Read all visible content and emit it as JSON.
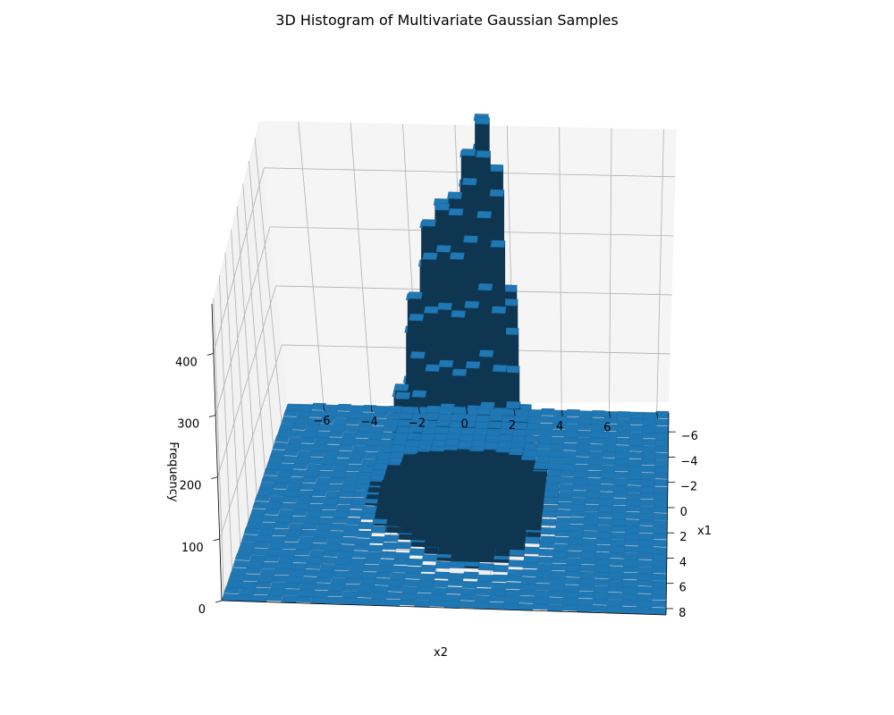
{
  "chart_data": {
    "type": "histogram3d",
    "title": "3D Histogram of Multivariate Gaussian Samples",
    "xlabel": "x1",
    "ylabel": "x2",
    "zlabel": "Frequency",
    "x1_ticks": [
      "−6",
      "−4",
      "−2",
      "0",
      "2",
      "4",
      "6",
      "8"
    ],
    "x2_ticks": [
      "−6",
      "−4",
      "−2",
      "0",
      "2",
      "4",
      "6",
      "8"
    ],
    "z_ticks": [
      "0",
      "100",
      "200",
      "300",
      "400"
    ],
    "x1_range": [
      -7.5,
      8.5
    ],
    "x2_range": [
      -7.5,
      8.5
    ],
    "zlim": [
      0,
      480
    ],
    "bins_per_axis": 30,
    "bar_color": "#1f77b4",
    "grid": true,
    "pane_color": "#f2f2f2",
    "components": [
      {
        "mean_x1": 0.0,
        "mean_x2": -0.7,
        "peak": 445
      },
      {
        "mean_x1": 0.0,
        "mean_x2": 1.5,
        "peak": 470
      },
      {
        "mean_x1": 2.0,
        "mean_x2": 1.2,
        "peak": 330
      }
    ]
  }
}
